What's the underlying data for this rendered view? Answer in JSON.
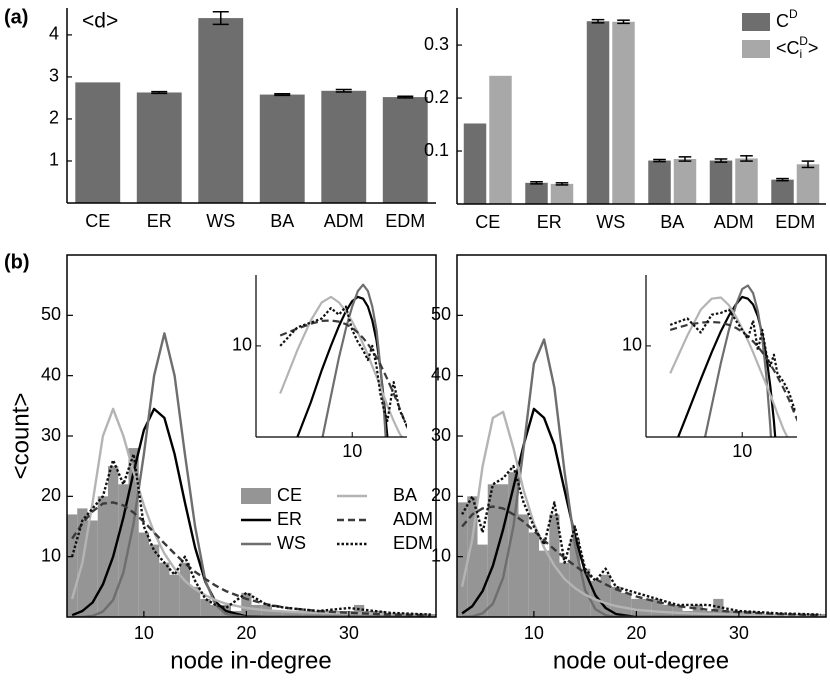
{
  "chart_data": [
    {
      "type": "bar",
      "panel_label": "(a)",
      "annotation": "<d>",
      "categories": [
        "CE",
        "ER",
        "WS",
        "BA",
        "ADM",
        "EDM"
      ],
      "series": [
        {
          "color": "#6e6e6e",
          "values": [
            2.87,
            2.63,
            4.4,
            2.58,
            2.67,
            2.52
          ],
          "errors": [
            null,
            0.02,
            0.15,
            0.02,
            0.03,
            0.02
          ]
        }
      ],
      "ylim": [
        0,
        4.64
      ],
      "yticks": [
        1,
        2,
        3,
        4
      ]
    },
    {
      "type": "bar",
      "categories": [
        "CE",
        "ER",
        "WS",
        "BA",
        "ADM",
        "EDM"
      ],
      "series": [
        {
          "legend_label": [
            {
              "text": "C"
            },
            {
              "text": "D",
              "shift": "super"
            }
          ],
          "color": "#6e6e6e",
          "values": [
            0.152,
            0.04,
            0.345,
            0.082,
            0.082,
            0.046
          ],
          "errors": [
            null,
            0.002,
            0.003,
            0.002,
            0.003,
            0.002
          ]
        },
        {
          "legend_label": [
            {
              "text": "<C"
            },
            {
              "text": "i",
              "shift": "sub"
            },
            {
              "text": "D",
              "shift": "super"
            },
            {
              "text": ">"
            }
          ],
          "color": "#a8a8a8",
          "values": [
            0.242,
            0.038,
            0.344,
            0.085,
            0.086,
            0.075
          ],
          "errors": [
            null,
            0.002,
            0.003,
            0.004,
            0.005,
            0.006
          ]
        }
      ],
      "ylim": [
        0,
        0.37
      ],
      "yticks": [
        0.1,
        0.2,
        0.3
      ],
      "legend": "upper right"
    },
    {
      "type": "line",
      "panel_label": "(b)",
      "ylabel": "<count>",
      "xlabel": "node in-degree",
      "xlim": [
        2.5,
        38.5
      ],
      "xticks": [
        10,
        20,
        30
      ],
      "ylim": [
        0,
        60
      ],
      "yticks": [
        10,
        20,
        30,
        40,
        50
      ],
      "legend": "center right",
      "histogram": {
        "name": "CE",
        "color": "#959595",
        "bins": [
          2.5,
          3.5,
          4.5,
          5.5,
          6.5,
          7.5,
          8.5,
          9.5,
          10.5,
          11.5,
          12.5,
          13.5,
          14.5,
          15.5,
          16.5,
          17.5,
          18.5,
          19.5,
          20.5,
          21.5,
          22.5,
          23.5,
          24.5,
          25.5,
          26.5,
          27.5,
          28.5,
          29.5,
          30.5,
          31.5,
          32.5,
          33.5,
          34.5,
          35.5,
          36.5,
          37.5,
          38.5
        ],
        "counts": [
          17,
          18,
          16,
          20,
          25,
          22,
          28,
          14,
          12,
          9,
          7,
          9,
          5,
          3,
          2,
          2,
          1,
          4,
          2,
          2,
          1,
          1,
          1,
          1,
          1,
          1,
          1,
          1,
          2,
          1,
          1,
          0.5,
          0.5,
          0.5,
          0.5,
          0.5
        ]
      },
      "x": [
        3,
        4,
        5,
        6,
        7,
        8,
        9,
        10,
        11,
        12,
        13,
        14,
        15,
        16,
        17,
        18,
        20,
        22,
        24,
        27,
        30,
        34,
        38
      ],
      "series": [
        {
          "name": "ER",
          "color": "#000000",
          "dash": "solid",
          "values": [
            0.3,
            1,
            2.4,
            5.4,
            10,
            16.5,
            24,
            31,
            34.5,
            33,
            27,
            19,
            11.5,
            5.8,
            2.5,
            1,
            0.1,
            0,
            0,
            0,
            0,
            0,
            0
          ]
        },
        {
          "name": "WS",
          "color": "#6e6e6e",
          "dash": "solid",
          "values": [
            0,
            0,
            0.2,
            0.9,
            2.8,
            7.4,
            15.5,
            27,
            40,
            47,
            40,
            27,
            15,
            6,
            2,
            0.5,
            0,
            0,
            0,
            0,
            0,
            0,
            0
          ]
        },
        {
          "name": "BA",
          "color": "#b4b4b4",
          "dash": "solid",
          "values": [
            3,
            9,
            19,
            30,
            34.5,
            30,
            24,
            18.5,
            14,
            10.5,
            8,
            6,
            4.6,
            3.6,
            2.8,
            2.2,
            1.5,
            1.1,
            0.9,
            0.7,
            0.6,
            0.5,
            0.4
          ]
        },
        {
          "name": "ADM",
          "color": "#3a3a3a",
          "dash": "dashed",
          "values": [
            13,
            15.5,
            17.5,
            18.8,
            19,
            18.5,
            17.3,
            15.8,
            14,
            12.2,
            10.5,
            8.9,
            7.5,
            6.3,
            5.2,
            4.3,
            3,
            2.1,
            1.5,
            1,
            0.7,
            0.4,
            0.25
          ]
        },
        {
          "name": "EDM",
          "color": "#111111",
          "dash": "dotted",
          "values": [
            10,
            16,
            18,
            20,
            26,
            22,
            27,
            15,
            11,
            9,
            7,
            10,
            6,
            3,
            2,
            1.5,
            4,
            2,
            1.5,
            1,
            1.5,
            0.7,
            0.4
          ]
        }
      ],
      "inset": {
        "log_x": true,
        "log_y": true,
        "xlim": [
          2,
          25
        ],
        "ylim": [
          1,
          60
        ],
        "xticks": [
          10
        ],
        "yticks": [
          10
        ]
      }
    },
    {
      "type": "line",
      "xlabel": "node out-degree",
      "xlim": [
        2.5,
        38.5
      ],
      "xticks": [
        10,
        20,
        30
      ],
      "ylim": [
        0,
        60
      ],
      "yticks": [
        10,
        20,
        30,
        40,
        50
      ],
      "histogram": {
        "name": "CE",
        "color": "#959595",
        "bins": [
          2.5,
          3.5,
          4.5,
          5.5,
          6.5,
          7.5,
          8.5,
          9.5,
          10.5,
          11.5,
          12.5,
          13.5,
          14.5,
          15.5,
          16.5,
          17.5,
          18.5,
          19.5,
          20.5,
          21.5,
          22.5,
          23.5,
          24.5,
          25.5,
          26.5,
          27.5,
          28.5,
          29.5,
          30.5,
          31.5,
          32.5,
          33.5,
          34.5,
          35.5,
          36.5,
          37.5,
          38.5
        ],
        "counts": [
          19,
          20,
          12,
          22,
          22,
          24,
          17,
          14,
          11,
          17,
          9,
          13,
          8,
          6,
          7,
          5,
          4,
          3,
          3,
          3,
          2,
          2,
          1,
          2,
          1,
          3,
          1,
          1,
          1,
          0.5,
          0.5,
          0.5,
          0.5,
          0.5,
          0.5,
          0.5
        ]
      },
      "x": [
        3,
        4,
        5,
        6,
        7,
        8,
        9,
        10,
        11,
        12,
        13,
        14,
        15,
        16,
        17,
        18,
        20,
        22,
        24,
        27,
        30,
        34,
        38
      ],
      "series": [
        {
          "name": "ER",
          "color": "#000000",
          "dash": "solid",
          "values": [
            0.6,
            1.8,
            4.3,
            8.5,
            14.5,
            21.5,
            28.5,
            34.5,
            33,
            28.5,
            21,
            13.5,
            7.5,
            3.6,
            1.5,
            0.5,
            0,
            0,
            0,
            0,
            0,
            0,
            0
          ]
        },
        {
          "name": "WS",
          "color": "#6e6e6e",
          "dash": "solid",
          "values": [
            0,
            0.1,
            0.6,
            2.2,
            6.5,
            15,
            28,
            42,
            46,
            38,
            24,
            12,
            4.5,
            1.3,
            0.3,
            0,
            0,
            0,
            0,
            0,
            0,
            0,
            0
          ]
        },
        {
          "name": "BA",
          "color": "#b4b4b4",
          "dash": "solid",
          "values": [
            5,
            13,
            25,
            33,
            34,
            28,
            21,
            15.5,
            11.5,
            8.5,
            6.3,
            4.8,
            3.7,
            2.9,
            2.3,
            1.8,
            1.2,
            0.9,
            0.7,
            0.5,
            0.4,
            0.3,
            0.2
          ]
        },
        {
          "name": "ADM",
          "color": "#3a3a3a",
          "dash": "dashed",
          "values": [
            15,
            17,
            18,
            18.3,
            18,
            17,
            15.8,
            14.3,
            12.7,
            11.2,
            9.8,
            8.5,
            7.3,
            6.3,
            5.4,
            4.6,
            3.4,
            2.5,
            1.8,
            1.2,
            0.8,
            0.5,
            0.3
          ]
        },
        {
          "name": "EDM",
          "color": "#111111",
          "dash": "dotted",
          "values": [
            17,
            20,
            14,
            22,
            23,
            25,
            19,
            15,
            12,
            19,
            9,
            15,
            8,
            6,
            8,
            5,
            4,
            3,
            2,
            2,
            1,
            0.6,
            0.4
          ]
        }
      ],
      "inset": {
        "log_x": true,
        "log_y": true,
        "xlim": [
          2,
          25
        ],
        "ylim": [
          1,
          60
        ],
        "xticks": [
          10
        ],
        "yticks": [
          10
        ]
      }
    }
  ]
}
